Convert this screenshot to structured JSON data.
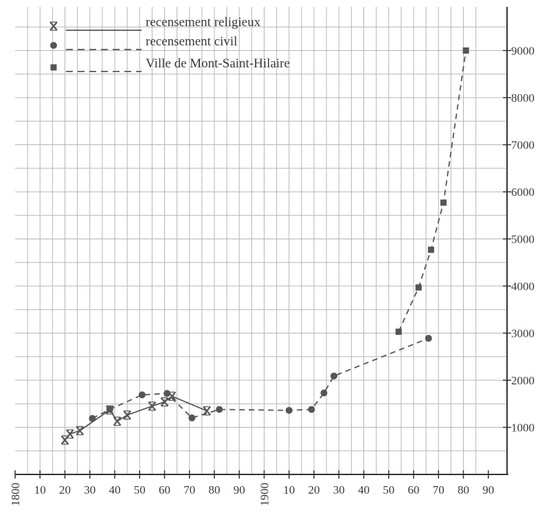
{
  "chart_data": {
    "type": "line",
    "title": "",
    "xlabel": "",
    "ylabel": "",
    "xlim": [
      1800,
      1990
    ],
    "ylim": [
      0,
      9500
    ],
    "grid": true,
    "y_axis_side": "right",
    "legend_position": "top-left",
    "x_tick_labels": [
      {
        "x": 1800,
        "label": "1800",
        "rotated": true
      },
      {
        "x": 1810,
        "label": "10"
      },
      {
        "x": 1820,
        "label": "20"
      },
      {
        "x": 1830,
        "label": "30"
      },
      {
        "x": 1840,
        "label": "40"
      },
      {
        "x": 1850,
        "label": "50"
      },
      {
        "x": 1860,
        "label": "60"
      },
      {
        "x": 1870,
        "label": "70"
      },
      {
        "x": 1880,
        "label": "80"
      },
      {
        "x": 1890,
        "label": "90"
      },
      {
        "x": 1900,
        "label": "1900",
        "rotated": true
      },
      {
        "x": 1910,
        "label": "10"
      },
      {
        "x": 1920,
        "label": "20"
      },
      {
        "x": 1930,
        "label": "30"
      },
      {
        "x": 1940,
        "label": "40"
      },
      {
        "x": 1950,
        "label": "50"
      },
      {
        "x": 1960,
        "label": "60"
      },
      {
        "x": 1970,
        "label": "70"
      },
      {
        "x": 1980,
        "label": "80"
      },
      {
        "x": 1990,
        "label": "90"
      }
    ],
    "y_tick_labels": [
      {
        "y": 1000,
        "label": "1000"
      },
      {
        "y": 2000,
        "label": "2000"
      },
      {
        "y": 3000,
        "label": "3000"
      },
      {
        "y": 4000,
        "label": "4000"
      },
      {
        "y": 5000,
        "label": "5000"
      },
      {
        "y": 6000,
        "label": "6000"
      },
      {
        "y": 7000,
        "label": "7000"
      },
      {
        "y": 8000,
        "label": "8000"
      },
      {
        "y": 9000,
        "label": "9000"
      }
    ],
    "series": [
      {
        "name": "recensement religieux",
        "marker": "cross",
        "line_style": "solid",
        "color": "#555555",
        "points": [
          [
            1820,
            730
          ],
          [
            1822,
            860
          ],
          [
            1826,
            930
          ],
          [
            1838,
            1370
          ],
          [
            1841,
            1130
          ],
          [
            1845,
            1260
          ],
          [
            1855,
            1450
          ],
          [
            1860,
            1540
          ],
          [
            1863,
            1660
          ],
          [
            1877,
            1350
          ]
        ]
      },
      {
        "name": "recensement civil",
        "marker": "circle",
        "line_style": "dashed",
        "color": "#555555",
        "points": [
          [
            1831,
            1190
          ],
          [
            1838,
            1380
          ],
          [
            1851,
            1690
          ],
          [
            1861,
            1720
          ],
          [
            1871,
            1200
          ],
          [
            1882,
            1380
          ],
          [
            1910,
            1360
          ],
          [
            1919,
            1380
          ],
          [
            1924,
            1730
          ],
          [
            1928,
            2090
          ],
          [
            1966,
            2890
          ]
        ]
      },
      {
        "name": "Ville de Mont-Saint-Hilaire",
        "marker": "square",
        "line_style": "dashed",
        "color": "#555555",
        "points": [
          [
            1954,
            3030
          ],
          [
            1962,
            3970
          ],
          [
            1967,
            4770
          ],
          [
            1972,
            5770
          ],
          [
            1981,
            9000
          ]
        ]
      }
    ]
  }
}
